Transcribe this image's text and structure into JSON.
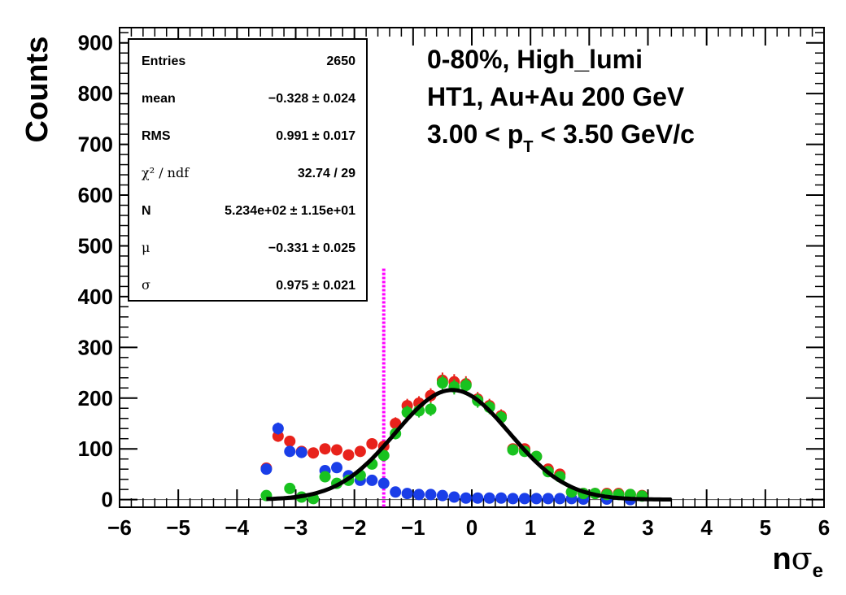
{
  "chart_data": {
    "type": "scatter",
    "xlabel_base": "n",
    "xlabel_sym": "σ",
    "xlabel_sub": "e",
    "ylabel": "Counts",
    "xlim": [
      -6,
      6
    ],
    "ylim": [
      -15,
      930
    ],
    "x_ticks": [
      "−6",
      "−5",
      "−4",
      "−3",
      "−2",
      "−1",
      "0",
      "1",
      "2",
      "3",
      "4",
      "5",
      "6"
    ],
    "y_ticks": [
      "0",
      "100",
      "200",
      "300",
      "400",
      "500",
      "600",
      "700",
      "800",
      "900"
    ],
    "annotation_lines": {
      "line1": "0-80%, High_lumi",
      "line2": "HT1, Au+Au 200 GeV",
      "line3_a": "3.00 < p",
      "line3_sub": "T",
      "line3_b": " < 3.50 GeV/c"
    },
    "stats_box": {
      "rows": [
        {
          "label": "Entries",
          "value": "2650"
        },
        {
          "label": "mean",
          "value": "−0.328 ± 0.024"
        },
        {
          "label": "RMS",
          "value": "0.991 ± 0.017"
        },
        {
          "label": "χ² / ndf",
          "value": "32.74 / 29"
        },
        {
          "label": "N",
          "value": "5.234e+02 ± 1.15e+01"
        },
        {
          "label": "μ",
          "value": "−0.331 ± 0.025"
        },
        {
          "label": "σ",
          "value": "0.975 ± 0.021"
        }
      ]
    },
    "cut_line_x": -1.5,
    "cut_line_top": 455,
    "series": [
      {
        "color": "#e8221b",
        "points": [
          [
            -3.5,
            62
          ],
          [
            -3.3,
            125
          ],
          [
            -3.1,
            115
          ],
          [
            -2.9,
            95
          ],
          [
            -2.7,
            92
          ],
          [
            -2.5,
            100
          ],
          [
            -2.3,
            98
          ],
          [
            -2.1,
            88
          ],
          [
            -1.9,
            95
          ],
          [
            -1.7,
            110
          ],
          [
            -1.5,
            105
          ],
          [
            -1.3,
            150
          ],
          [
            -1.1,
            185
          ],
          [
            -0.9,
            190
          ],
          [
            -0.7,
            205
          ],
          [
            -0.5,
            235
          ],
          [
            -0.3,
            232
          ],
          [
            -0.1,
            228
          ],
          [
            0.1,
            198
          ],
          [
            0.3,
            185
          ],
          [
            0.5,
            165
          ],
          [
            0.7,
            100
          ],
          [
            0.9,
            100
          ],
          [
            1.1,
            85
          ],
          [
            1.3,
            60
          ],
          [
            1.5,
            50
          ],
          [
            1.7,
            15
          ],
          [
            1.9,
            12
          ],
          [
            2.1,
            12
          ],
          [
            2.3,
            12
          ],
          [
            2.5,
            12
          ],
          [
            2.7,
            10
          ],
          [
            2.9,
            8
          ]
        ]
      },
      {
        "color": "#1a3ee8",
        "points": [
          [
            -3.5,
            60
          ],
          [
            -3.3,
            140
          ],
          [
            -3.1,
            95
          ],
          [
            -2.9,
            93
          ],
          [
            -2.5,
            57
          ],
          [
            -2.3,
            63
          ],
          [
            -2.1,
            47
          ],
          [
            -1.9,
            38
          ],
          [
            -1.7,
            38
          ],
          [
            -1.5,
            32
          ],
          [
            -1.3,
            15
          ],
          [
            -1.1,
            12
          ],
          [
            -0.9,
            10
          ],
          [
            -0.7,
            10
          ],
          [
            -0.5,
            8
          ],
          [
            -0.3,
            5
          ],
          [
            -0.1,
            3
          ],
          [
            0.1,
            3
          ],
          [
            0.3,
            3
          ],
          [
            0.5,
            3
          ],
          [
            0.7,
            2
          ],
          [
            0.9,
            2
          ],
          [
            1.1,
            2
          ],
          [
            1.3,
            2
          ],
          [
            1.5,
            2
          ],
          [
            1.7,
            2
          ],
          [
            1.9,
            1
          ],
          [
            2.3,
            1
          ],
          [
            2.7,
            0
          ]
        ]
      },
      {
        "color": "#18c21f",
        "points": [
          [
            -3.5,
            8
          ],
          [
            -3.1,
            22
          ],
          [
            -2.9,
            5
          ],
          [
            -2.7,
            2
          ],
          [
            -2.5,
            45
          ],
          [
            -2.3,
            32
          ],
          [
            -2.1,
            38
          ],
          [
            -1.9,
            48
          ],
          [
            -1.7,
            70
          ],
          [
            -1.5,
            87
          ],
          [
            -1.3,
            130
          ],
          [
            -1.1,
            172
          ],
          [
            -0.9,
            175
          ],
          [
            -0.7,
            178
          ],
          [
            -0.5,
            230
          ],
          [
            -0.3,
            222
          ],
          [
            -0.1,
            225
          ],
          [
            0.1,
            195
          ],
          [
            0.3,
            182
          ],
          [
            0.5,
            162
          ],
          [
            0.7,
            98
          ],
          [
            0.9,
            95
          ],
          [
            1.1,
            85
          ],
          [
            1.3,
            55
          ],
          [
            1.5,
            45
          ],
          [
            1.7,
            15
          ],
          [
            1.9,
            12
          ],
          [
            2.1,
            12
          ],
          [
            2.3,
            10
          ],
          [
            2.5,
            10
          ],
          [
            2.7,
            10
          ],
          [
            2.9,
            7
          ]
        ]
      }
    ],
    "fit": {
      "color": "#000000",
      "norm_per_bin": 216,
      "mu": -0.331,
      "sigma": 0.975,
      "x_range": [
        -3.5,
        3.4
      ]
    }
  }
}
